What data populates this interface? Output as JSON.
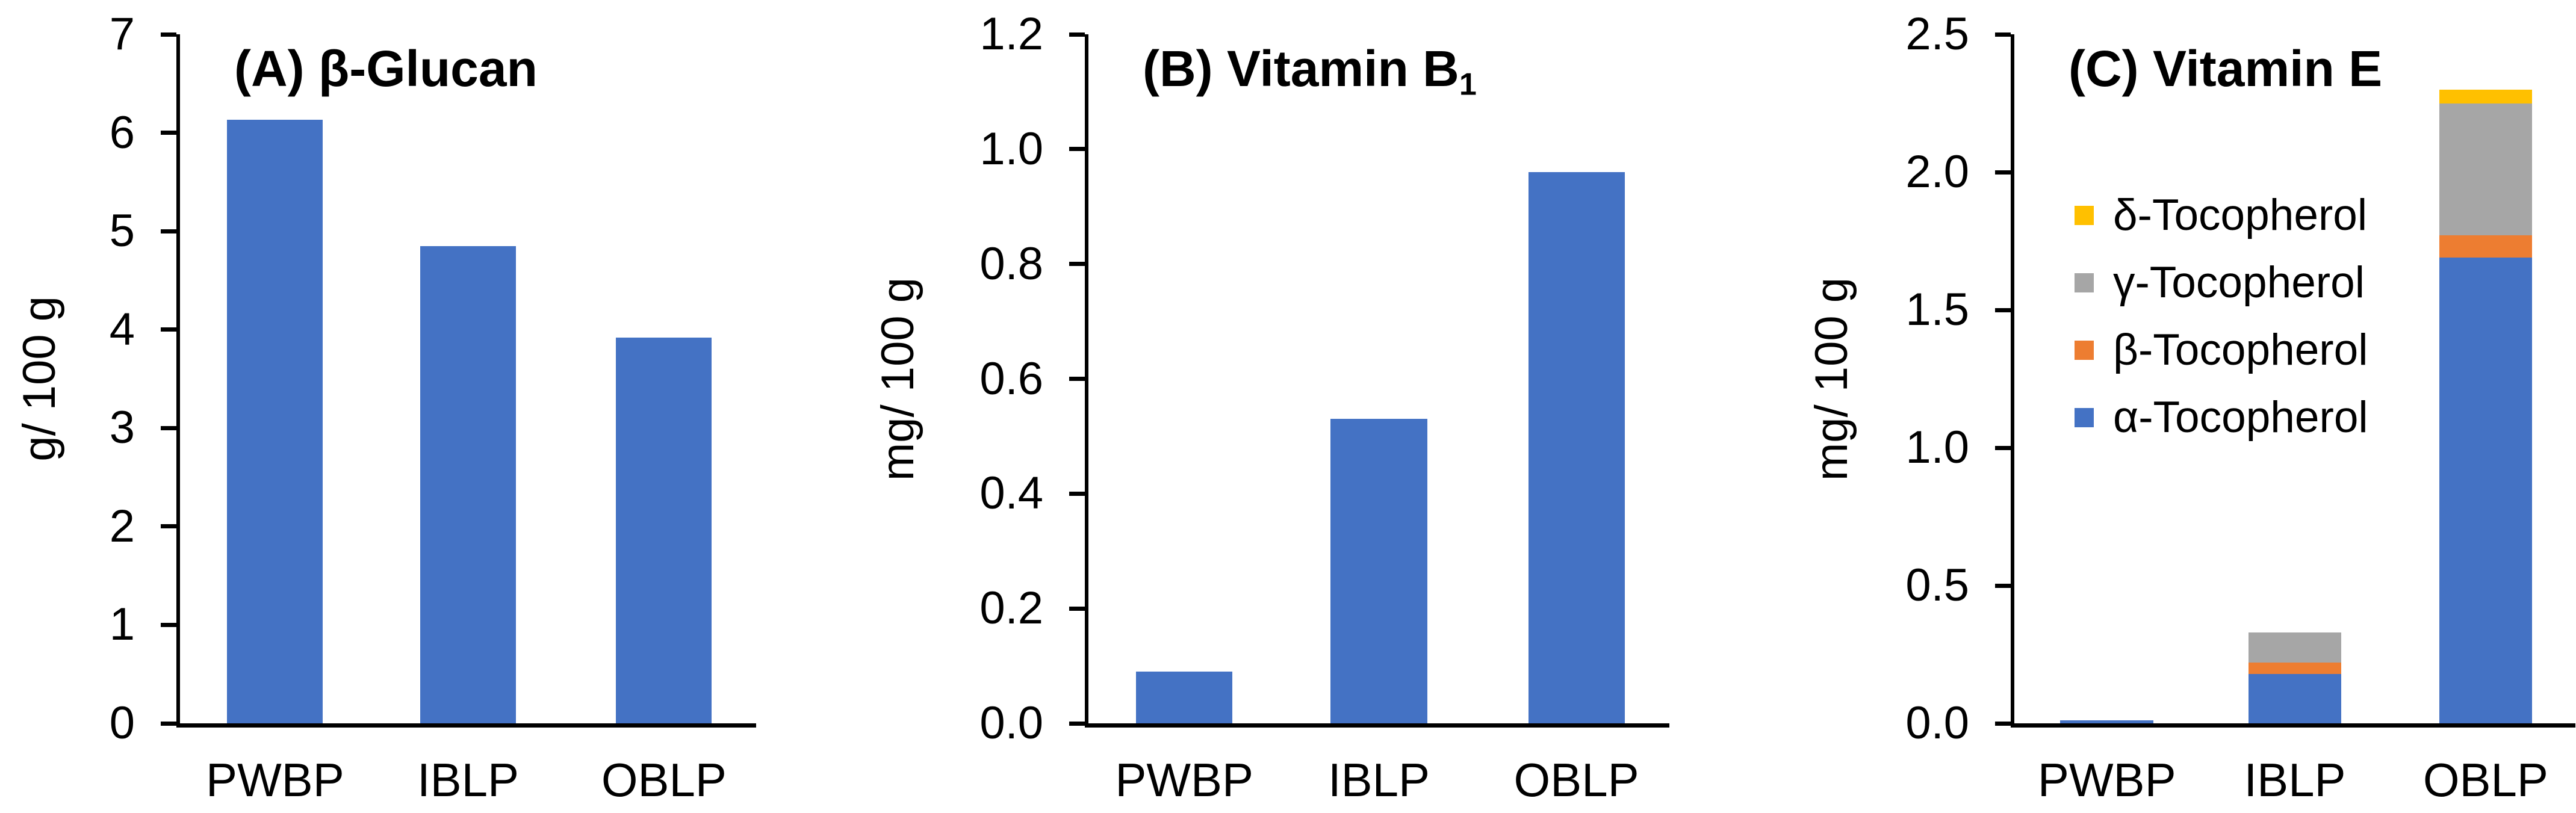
{
  "figure": {
    "background": "#ffffff",
    "colors": {
      "bar_blue": "#4472C4",
      "orange": "#ED7D31",
      "gray": "#A6A6A6",
      "yellow": "#FFC000",
      "axis": "#000000",
      "text": "#000000"
    }
  },
  "chart_data": [
    {
      "panel": "A",
      "type": "bar",
      "title": "(A) β-Glucan",
      "ylabel": "g/ 100 g",
      "categories": [
        "PWBP",
        "IBLP",
        "OBLP"
      ],
      "values": [
        6.13,
        4.85,
        3.92
      ],
      "ylim": [
        0,
        7
      ],
      "ytick_labels": [
        "0",
        "1",
        "2",
        "3",
        "4",
        "5",
        "6",
        "7"
      ],
      "bar_color": "#4472C4",
      "grid": false,
      "legend_position": "none"
    },
    {
      "panel": "B",
      "type": "bar",
      "title": "(B) Vitamin B",
      "title_sub": "1",
      "ylabel": "mg/ 100 g",
      "categories": [
        "PWBP",
        "IBLP",
        "OBLP"
      ],
      "values": [
        0.09,
        0.53,
        0.96
      ],
      "ylim": [
        0,
        1.2
      ],
      "ytick_labels": [
        "0.0",
        "0.2",
        "0.4",
        "0.6",
        "0.8",
        "1.0",
        "1.2"
      ],
      "bar_color": "#4472C4",
      "grid": false,
      "legend_position": "none"
    },
    {
      "panel": "C",
      "type": "stacked-bar",
      "title": "(C) Vitamin E",
      "ylabel": "mg/ 100 g",
      "categories": [
        "PWBP",
        "IBLP",
        "OBLP"
      ],
      "series": [
        {
          "name": "α-Tocopherol",
          "color": "#4472C4",
          "values": [
            0.01,
            0.18,
            1.69
          ]
        },
        {
          "name": "β-Tocopherol",
          "color": "#ED7D31",
          "values": [
            0,
            0.04,
            0.08
          ]
        },
        {
          "name": "γ-Tocopherol",
          "color": "#A6A6A6",
          "values": [
            0,
            0.11,
            0.48
          ]
        },
        {
          "name": "δ-Tocopherol",
          "color": "#FFC000",
          "values": [
            0,
            0,
            0.05
          ]
        }
      ],
      "totals": [
        0.01,
        0.33,
        2.3
      ],
      "legend": [
        {
          "label": "δ-Tocopherol",
          "color": "#FFC000"
        },
        {
          "label": "γ-Tocopherol",
          "color": "#A6A6A6"
        },
        {
          "label": "β-Tocopherol",
          "color": "#ED7D31"
        },
        {
          "label": "α-Tocopherol",
          "color": "#4472C4"
        }
      ],
      "ylim": [
        0,
        2.5
      ],
      "ytick_labels": [
        "0.0",
        "0.5",
        "1.0",
        "1.5",
        "2.0",
        "2.5"
      ],
      "grid": false,
      "legend_position": "inside-upper-left"
    }
  ]
}
